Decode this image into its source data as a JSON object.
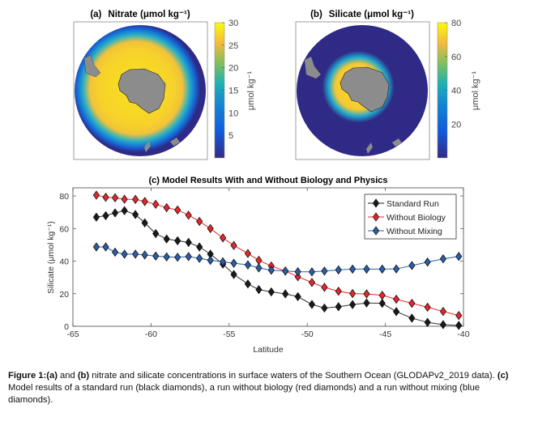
{
  "panel_a": {
    "label": "(a)",
    "title": "Nitrate (μmol kg⁻¹)",
    "colorbar_label": "μmol kg⁻¹",
    "colorbar_ticks": [
      "30",
      "25",
      "20",
      "15",
      "10",
      "5"
    ],
    "colorbar_range": [
      0,
      30
    ]
  },
  "panel_b": {
    "label": "(b)",
    "title": "Silicate (μmol kg⁻¹)",
    "colorbar_label": "μmol kg⁻¹",
    "colorbar_ticks": [
      "80",
      "60",
      "40",
      "20"
    ],
    "colorbar_range": [
      0,
      80
    ]
  },
  "colors": {
    "standard": "#1a1a1a",
    "no_bio": "#e8262b",
    "no_mix": "#2a5ea8",
    "land": "#8c8c8c",
    "ocean_low": "#2e2a86",
    "ocean_high": "#f9e11d"
  },
  "chart_data": {
    "type": "line",
    "title": "(c)  Model Results With and Without Biology and Physics",
    "xlabel": "Latitude",
    "ylabel": "Silicate (μmol kg⁻¹)",
    "xlim": [
      -65,
      -40
    ],
    "ylim": [
      0,
      85
    ],
    "xticks": [
      "-65",
      "-60",
      "-55",
      "-50",
      "-45",
      "-40"
    ],
    "yticks": [
      "0",
      "20",
      "40",
      "60",
      "80"
    ],
    "legend_position": "top-right",
    "marker": "diamond",
    "x": [
      -63.5,
      -62.9,
      -62.3,
      -61.7,
      -61.0,
      -60.4,
      -59.7,
      -59.0,
      -58.3,
      -57.6,
      -56.9,
      -56.2,
      -55.4,
      -54.7,
      -53.8,
      -53.1,
      -52.3,
      -51.4,
      -50.6,
      -49.7,
      -48.9,
      -48.0,
      -47.1,
      -46.2,
      -45.2,
      -44.3,
      -43.3,
      -42.3,
      -41.3,
      -40.3
    ],
    "series": [
      {
        "name": "Standard Run",
        "color": "#1a1a1a",
        "values": [
          67,
          67.9,
          69.6,
          71,
          68.6,
          63.5,
          56.9,
          53.6,
          52.5,
          51.5,
          48.7,
          44.3,
          38.2,
          31.8,
          26,
          22.5,
          21.1,
          19.9,
          18.2,
          13.4,
          11.2,
          12,
          13.3,
          14.3,
          14.1,
          9,
          5,
          2.4,
          1,
          0.5
        ]
      },
      {
        "name": "Without Biology",
        "color": "#e8262b",
        "values": [
          80.5,
          79.2,
          78.9,
          78,
          77.9,
          76.6,
          74.9,
          72.8,
          71.4,
          68.2,
          64.4,
          60,
          54.3,
          49.6,
          44.7,
          40.5,
          37,
          33.9,
          30.4,
          26.9,
          23.9,
          21.5,
          20.1,
          19.9,
          19,
          16.6,
          14.1,
          11.7,
          9.1,
          6.6
        ]
      },
      {
        "name": "Without Mixing",
        "color": "#2a5ea8",
        "values": [
          48.7,
          48.7,
          45.5,
          44.3,
          44.3,
          43.8,
          43.1,
          42.6,
          42.4,
          42.8,
          41.7,
          40.5,
          39.6,
          38.7,
          37.7,
          35.8,
          34.4,
          33.9,
          33.5,
          33.4,
          33.9,
          34.6,
          35.1,
          35.1,
          35.1,
          35.2,
          37.3,
          39.4,
          41.4,
          42.9
        ]
      }
    ]
  },
  "caption": {
    "fig_label": "Figure 1:",
    "a": "(a)",
    "t1": " and ",
    "b": "(b)",
    "t2": " nitrate and silicate concentrations in surface waters of the Southern Ocean (GLODAPv2_2019 data). ",
    "c": "(c)",
    "t3": " Model results of a standard run (black diamonds), a run without biology (red diamonds) and a run without mixing (blue diamonds)."
  }
}
